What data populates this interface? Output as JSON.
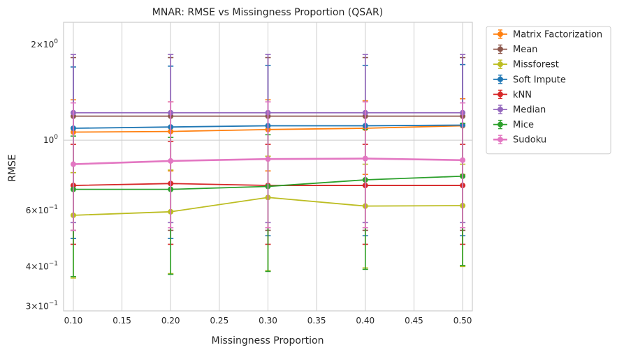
{
  "chart_data": {
    "type": "line",
    "title": "MNAR: RMSE vs Missingness Proportion (QSAR)",
    "xlabel": "Missingness Proportion",
    "ylabel": "RMSE",
    "yscale": "log",
    "xlim": [
      0.09,
      0.51
    ],
    "ylim": [
      0.29,
      2.35
    ],
    "grid": true,
    "legend_position": "outside-top-right",
    "x_ticks": [
      0.1,
      0.15,
      0.2,
      0.25,
      0.3,
      0.35,
      0.4,
      0.45,
      0.5
    ],
    "x_tick_labels": [
      "0.10",
      "0.15",
      "0.20",
      "0.25",
      "0.30",
      "0.35",
      "0.40",
      "0.45",
      "0.50"
    ],
    "y_ticks": [
      {
        "value": 2.0,
        "mantissa": "2",
        "exp": "0"
      },
      {
        "value": 1.0,
        "mantissa": "",
        "exp": "0"
      },
      {
        "value": 0.6,
        "mantissa": "6",
        "exp": "−1"
      },
      {
        "value": 0.4,
        "mantissa": "4",
        "exp": "−1"
      },
      {
        "value": 0.3,
        "mantissa": "3",
        "exp": "−1"
      }
    ],
    "x": [
      0.1,
      0.2,
      0.3,
      0.4,
      0.5
    ],
    "series": [
      {
        "name": "Matrix Factorization",
        "color": "#ff7f0e",
        "values": [
          1.06,
          1.065,
          1.08,
          1.09,
          1.11
        ],
        "err_low": [
          0.79,
          0.8,
          0.8,
          0.78,
          0.78
        ],
        "err_high": [
          1.34,
          1.32,
          1.34,
          1.33,
          1.35
        ]
      },
      {
        "name": "Mean",
        "color": "#8c564b",
        "values": [
          1.19,
          1.19,
          1.19,
          1.19,
          1.19
        ],
        "err_low": [
          0.52,
          0.52,
          0.52,
          0.52,
          0.52
        ],
        "err_high": [
          1.82,
          1.82,
          1.82,
          1.82,
          1.82
        ]
      },
      {
        "name": "Missforest",
        "color": "#bcbd22",
        "values": [
          0.58,
          0.595,
          0.66,
          0.62,
          0.622
        ],
        "err_low": [
          0.368,
          0.38,
          0.388,
          0.396,
          0.4
        ],
        "err_high": [
          0.79,
          0.805,
          0.89,
          0.84,
          0.84
        ]
      },
      {
        "name": "Soft Impute",
        "color": "#1f77b4",
        "values": [
          1.09,
          1.1,
          1.11,
          1.11,
          1.115
        ],
        "err_low": [
          0.49,
          0.49,
          0.5,
          0.5,
          0.5
        ],
        "err_high": [
          1.7,
          1.71,
          1.72,
          1.72,
          1.73
        ]
      },
      {
        "name": "kNN",
        "color": "#d62728",
        "values": [
          0.72,
          0.73,
          0.72,
          0.72,
          0.72
        ],
        "err_low": [
          0.47,
          0.47,
          0.47,
          0.47,
          0.47
        ],
        "err_high": [
          0.97,
          0.99,
          0.97,
          0.97,
          0.97
        ]
      },
      {
        "name": "Median",
        "color": "#9467bd",
        "values": [
          1.22,
          1.22,
          1.22,
          1.22,
          1.22
        ],
        "err_low": [
          0.55,
          0.55,
          0.55,
          0.55,
          0.55
        ],
        "err_high": [
          1.86,
          1.86,
          1.86,
          1.86,
          1.86
        ]
      },
      {
        "name": "Mice",
        "color": "#2ca02c",
        "values": [
          0.7,
          0.7,
          0.715,
          0.75,
          0.77
        ],
        "err_low": [
          0.372,
          0.378,
          0.386,
          0.392,
          0.403
        ],
        "err_high": [
          1.03,
          1.02,
          1.04,
          1.08,
          1.13
        ]
      },
      {
        "name": "Sudoku",
        "color": "#e377c2",
        "values": [
          0.84,
          0.86,
          0.872,
          0.875,
          0.865
        ],
        "err_low": [
          0.52,
          0.53,
          0.53,
          0.53,
          0.53
        ],
        "err_high": [
          1.31,
          1.32,
          1.32,
          1.32,
          1.31
        ]
      }
    ]
  }
}
